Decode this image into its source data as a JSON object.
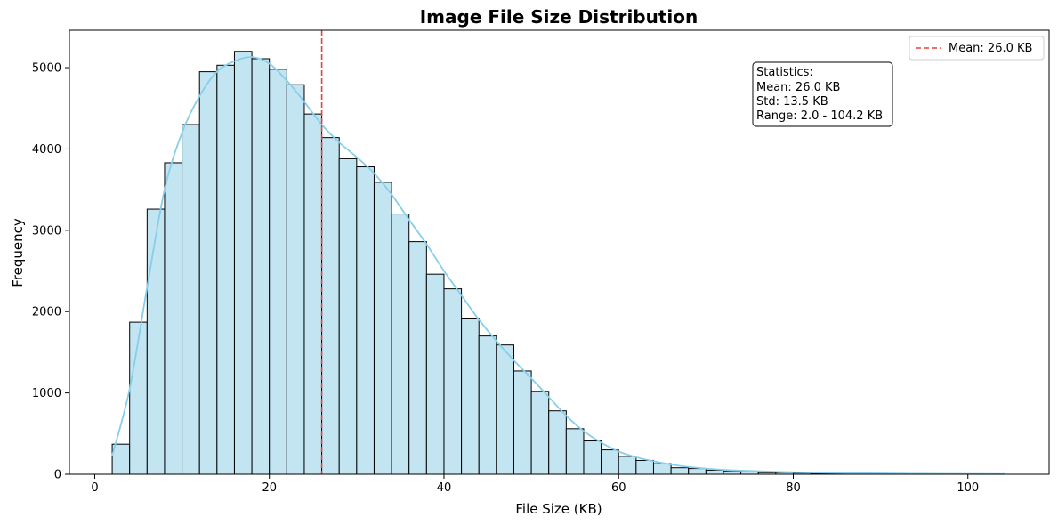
{
  "chart_data": {
    "type": "bar",
    "title": "Image File Size Distribution",
    "xlabel": "File Size (KB)",
    "ylabel": "Frequency",
    "xlim": [
      -2.9,
      109.3
    ],
    "ylim": [
      0,
      5460
    ],
    "xticks": [
      0,
      20,
      40,
      60,
      80,
      100
    ],
    "yticks": [
      0,
      1000,
      2000,
      3000,
      4000,
      5000
    ],
    "grid": false,
    "bins": {
      "start": 2.0,
      "width": 2.0,
      "values": [
        370,
        1870,
        3260,
        3830,
        4300,
        4950,
        5030,
        5200,
        5110,
        4980,
        4790,
        4430,
        4140,
        3880,
        3780,
        3590,
        3200,
        2860,
        2460,
        2280,
        1920,
        1700,
        1590,
        1270,
        1020,
        780,
        560,
        410,
        300,
        220,
        170,
        130,
        80,
        70,
        50,
        40,
        30,
        20,
        20,
        15,
        10,
        10,
        10,
        8,
        6,
        5,
        4,
        3,
        3,
        2,
        2
      ]
    },
    "kde": {
      "x": [
        2,
        4,
        6,
        8,
        10,
        12,
        14,
        16,
        18,
        20,
        22,
        24,
        26,
        28,
        30,
        32,
        34,
        36,
        38,
        40,
        42,
        44,
        46,
        48,
        50,
        52,
        54,
        56,
        58,
        60,
        62,
        64,
        66,
        68,
        70,
        72,
        74,
        76,
        78,
        80,
        84,
        90,
        95,
        100,
        104.2
      ],
      "y": [
        230,
        1050,
        2300,
        3500,
        4200,
        4650,
        4950,
        5080,
        5130,
        5050,
        4840,
        4580,
        4300,
        4080,
        3900,
        3700,
        3440,
        3130,
        2830,
        2500,
        2200,
        1900,
        1640,
        1400,
        1180,
        950,
        720,
        530,
        390,
        280,
        210,
        160,
        120,
        90,
        70,
        55,
        45,
        38,
        30,
        25,
        18,
        10,
        6,
        4,
        3
      ]
    },
    "mean_line": {
      "x": 26.0,
      "label": "Mean: 26.0 KB",
      "color": "#e8413c"
    },
    "legend": {
      "position": "top-right",
      "entries": [
        "Mean: 26.0 KB"
      ]
    },
    "stats_box": {
      "position": "top-right-inner",
      "lines": [
        "Statistics:",
        "Mean: 26.0 KB",
        "Std: 13.5 KB",
        "Range: 2.0 - 104.2 KB"
      ]
    },
    "colors": {
      "bar_fill": "#c3e5f2",
      "bar_edge": "#000000",
      "kde_line": "#87ceeb",
      "mean_line": "#e8413c"
    }
  }
}
